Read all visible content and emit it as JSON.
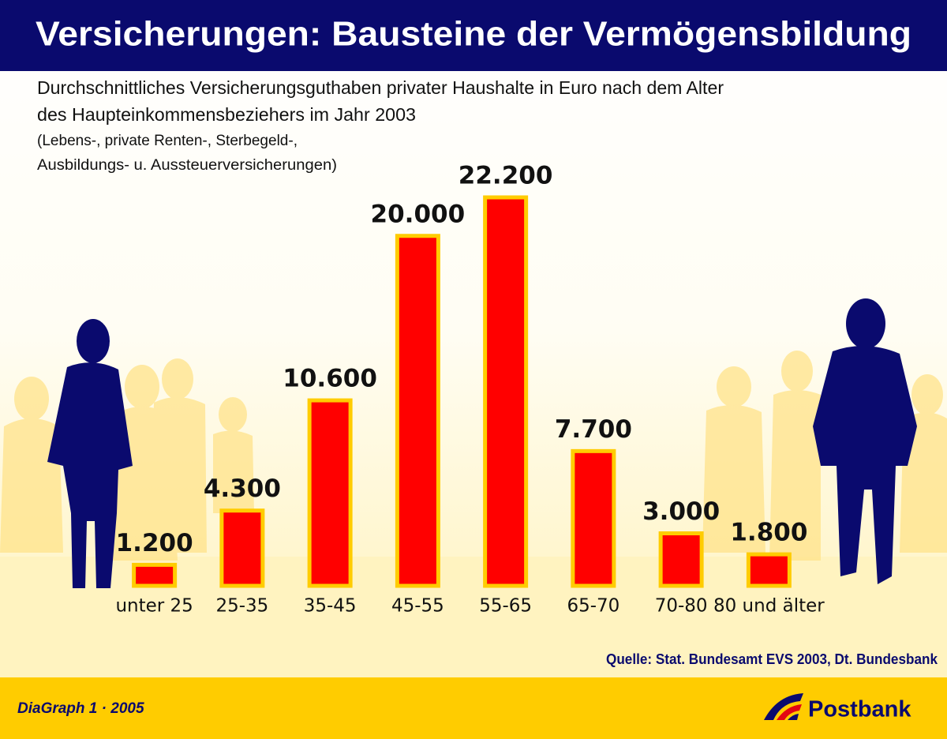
{
  "chart_data": {
    "type": "bar",
    "title": "Versicherungen: Bausteine der Vermögensbildung",
    "subtitle": [
      "Durchschnittliches Versicherungsguthaben privater Haushalte in Euro nach dem Alter",
      "des Haupteinkommensbeziehers im Jahr 2003"
    ],
    "note": [
      "(Lebens-, private Renten-, Sterbegeld-,",
      "Ausbildungs- u. Aussteuerversicherungen)"
    ],
    "categories": [
      "unter 25",
      "25-35",
      "35-45",
      "45-55",
      "55-65",
      "65-70",
      "70-80",
      "80 und älter"
    ],
    "values": [
      1200,
      4300,
      10600,
      20000,
      22200,
      7700,
      3000,
      1800
    ],
    "value_labels": [
      "1.200",
      "4.300",
      "10.600",
      "20.000",
      "22.200",
      "7.700",
      "3.000",
      "1.800"
    ],
    "color": "#ff0000",
    "edge_color": "#ffcc00",
    "source": "Quelle: Stat. Bundesamt EVS 2003, Dt. Bundesbank"
  },
  "footer": {
    "credit": "DiaGraph 1 · 2005",
    "brand": "Postbank"
  }
}
